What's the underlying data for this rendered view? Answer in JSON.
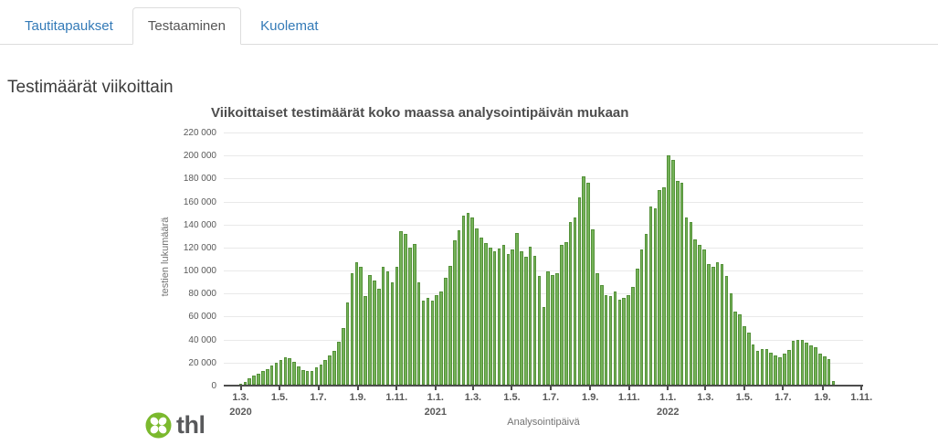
{
  "tabs": [
    {
      "label": "Tautitapaukset",
      "active": false
    },
    {
      "label": "Testaaminen",
      "active": true
    },
    {
      "label": "Kuolemat",
      "active": false
    }
  ],
  "page": {
    "heading": "Testimäärät viikoittain"
  },
  "chart_data": {
    "type": "bar",
    "title": "Viikoittaiset testimäärät koko maassa analysointipäivän mukaan",
    "xlabel": "Analysointipäivä",
    "ylabel": "testien lukumäärä",
    "x_unit": "week",
    "first_week": "1.3.2020",
    "ylim": [
      0,
      220000
    ],
    "grid": true,
    "bar_color": "#74b258",
    "bar_border_color": "#55913a",
    "y_ticks": [
      {
        "value": 0,
        "label": "0"
      },
      {
        "value": 20000,
        "label": "20 000"
      },
      {
        "value": 40000,
        "label": "40 000"
      },
      {
        "value": 60000,
        "label": "60 000"
      },
      {
        "value": 80000,
        "label": "80 000"
      },
      {
        "value": 100000,
        "label": "100 000"
      },
      {
        "value": 120000,
        "label": "120 000"
      },
      {
        "value": 140000,
        "label": "140 000"
      },
      {
        "value": 160000,
        "label": "160 000"
      },
      {
        "value": 180000,
        "label": "180 000"
      },
      {
        "value": 200000,
        "label": "200 000"
      },
      {
        "value": 220000,
        "label": "220 000"
      }
    ],
    "x_ticks": [
      {
        "label": "1.3.",
        "week": 0,
        "year": "2020"
      },
      {
        "label": "1.5.",
        "week": 8.714
      },
      {
        "label": "1.7.",
        "week": 17.429
      },
      {
        "label": "1.9.",
        "week": 26.286
      },
      {
        "label": "1.11.",
        "week": 35.0
      },
      {
        "label": "1.1.",
        "week": 43.714,
        "year": "2021"
      },
      {
        "label": "1.3.",
        "week": 52.143
      },
      {
        "label": "1.5.",
        "week": 60.857
      },
      {
        "label": "1.7.",
        "week": 69.571
      },
      {
        "label": "1.9.",
        "week": 78.429
      },
      {
        "label": "1.11.",
        "week": 87.143
      },
      {
        "label": "1.1.",
        "week": 95.857,
        "year": "2022"
      },
      {
        "label": "1.3.",
        "week": 104.286
      },
      {
        "label": "1.5.",
        "week": 113.0
      },
      {
        "label": "1.7.",
        "week": 121.714
      },
      {
        "label": "1.9.",
        "week": 130.571
      },
      {
        "label": "1.11.",
        "week": 139.286
      }
    ],
    "values": [
      1500,
      3500,
      6500,
      8500,
      10500,
      12500,
      14000,
      17500,
      19500,
      22500,
      25000,
      23500,
      21000,
      17000,
      13500,
      12500,
      12500,
      16000,
      18000,
      22000,
      26000,
      30000,
      38000,
      50000,
      72000,
      98000,
      107000,
      103000,
      78000,
      96000,
      91000,
      84000,
      103000,
      99000,
      90000,
      103000,
      134000,
      132000,
      120000,
      123000,
      90000,
      74000,
      76000,
      74000,
      79000,
      82000,
      94000,
      104000,
      126000,
      135000,
      148000,
      150000,
      146000,
      137000,
      129000,
      124000,
      120000,
      117000,
      119000,
      122000,
      114000,
      118000,
      133000,
      117000,
      112000,
      121000,
      113000,
      95000,
      68000,
      99000,
      96000,
      98000,
      122000,
      125000,
      142000,
      146000,
      164000,
      182000,
      176000,
      136000,
      98000,
      87000,
      79000,
      78000,
      82000,
      75000,
      76000,
      79000,
      86000,
      102000,
      118000,
      132000,
      156000,
      154000,
      170000,
      172000,
      200000,
      196000,
      178000,
      176000,
      146000,
      142000,
      127000,
      122000,
      118000,
      106000,
      103000,
      107000,
      106000,
      95000,
      80000,
      64000,
      62000,
      52000,
      46000,
      36000,
      30000,
      32000,
      31500,
      29000,
      26000,
      25000,
      27500,
      31000,
      39000,
      40000,
      39500,
      37500,
      35000,
      33000,
      27500,
      25500,
      23000,
      4000
    ]
  },
  "footer": {
    "logo_text": "thl",
    "logo_color": "#7bb92e"
  }
}
